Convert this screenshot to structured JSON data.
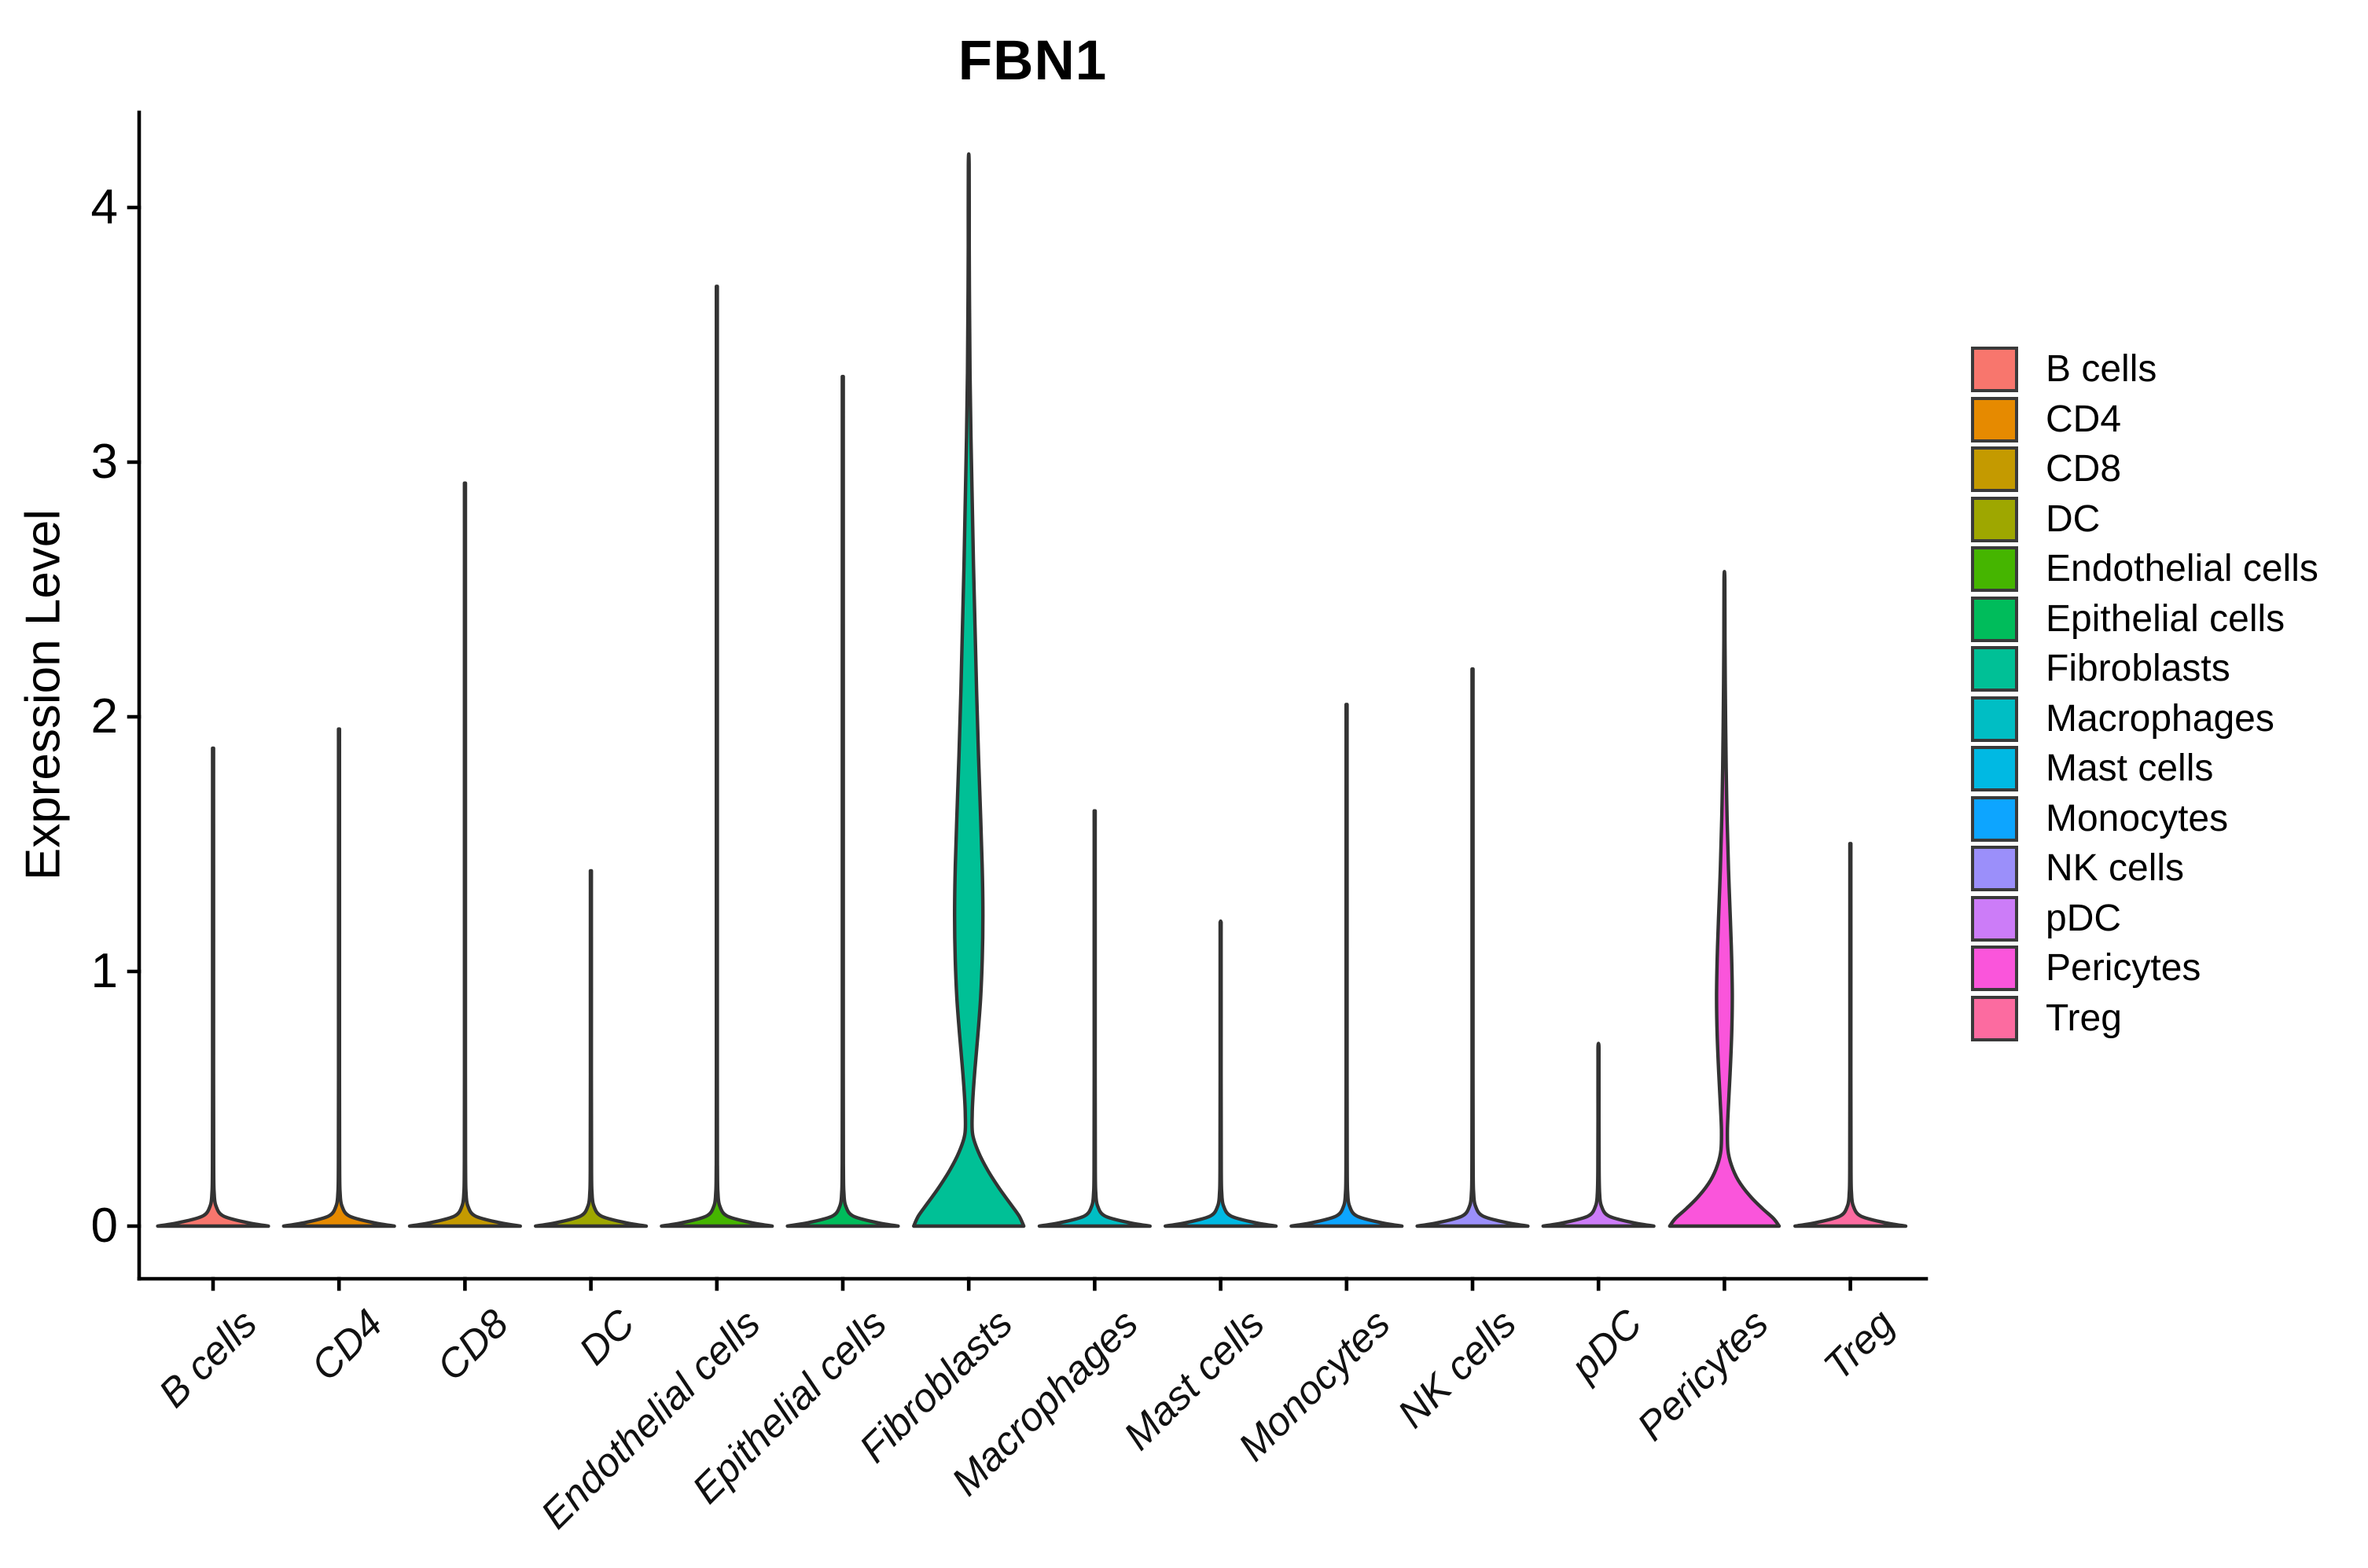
{
  "chart_data": {
    "type": "violin",
    "title": "FBN1",
    "ylabel": "Expression Level",
    "yticks": [
      0,
      1,
      2,
      3,
      4
    ],
    "ylim": [
      -0.2,
      4.4
    ],
    "grid": false,
    "legend_position": "right",
    "outline_color": "#333333",
    "axis_color": "#000000",
    "base_profile": [
      [
        0,
        0.88
      ],
      [
        0.015,
        0.52
      ],
      [
        0.04,
        0.16
      ],
      [
        0.08,
        0.045
      ],
      [
        0.13,
        0.018
      ],
      [
        0.22,
        0.01
      ]
    ],
    "categories": [
      {
        "label": "B cells",
        "color": "#F8766D",
        "peak": 1.83
      },
      {
        "label": "CD4",
        "color": "#E68A00",
        "peak": 1.9
      },
      {
        "label": "CD8",
        "color": "#C49A00",
        "peak": 2.8
      },
      {
        "label": "DC",
        "color": "#9EA700",
        "peak": 1.38
      },
      {
        "label": "Endothelial cells",
        "color": "#45B500",
        "peak": 3.52
      },
      {
        "label": "Epithelial cells",
        "color": "#00BC5B",
        "peak": 3.19
      },
      {
        "label": "Fibroblasts",
        "color": "#00C096",
        "peak": 4.17,
        "profile": [
          [
            0,
            0.875
          ],
          [
            0.04,
            0.8
          ],
          [
            0.09,
            0.655
          ],
          [
            0.15,
            0.48
          ],
          [
            0.22,
            0.3
          ],
          [
            0.29,
            0.155
          ],
          [
            0.36,
            0.062
          ],
          [
            0.44,
            0.055
          ],
          [
            0.52,
            0.07
          ],
          [
            0.62,
            0.1
          ],
          [
            0.75,
            0.145
          ],
          [
            0.9,
            0.19
          ],
          [
            1.05,
            0.215
          ],
          [
            1.22,
            0.225
          ],
          [
            1.4,
            0.215
          ],
          [
            1.6,
            0.19
          ],
          [
            1.85,
            0.155
          ],
          [
            2.1,
            0.125
          ],
          [
            2.35,
            0.1
          ],
          [
            2.6,
            0.075
          ],
          [
            2.85,
            0.055
          ],
          [
            3.1,
            0.035
          ],
          [
            3.35,
            0.02
          ],
          [
            3.6,
            0.012
          ],
          [
            3.85,
            0.008
          ],
          [
            4.17,
            0.006
          ]
        ]
      },
      {
        "label": "Macrophages",
        "color": "#00BEC4",
        "peak": 1.6
      },
      {
        "label": "Mast cells",
        "color": "#00B9E3",
        "peak": 1.19
      },
      {
        "label": "Monocytes",
        "color": "#0DA5FF",
        "peak": 1.99
      },
      {
        "label": "NK cells",
        "color": "#9B8FFA",
        "peak": 2.12
      },
      {
        "label": "pDC",
        "color": "#CC7CF8",
        "peak": 0.71
      },
      {
        "label": "Pericytes",
        "color": "#FA55DB",
        "peak": 2.54,
        "profile": [
          [
            0,
            0.87
          ],
          [
            0.03,
            0.78
          ],
          [
            0.07,
            0.6
          ],
          [
            0.12,
            0.4
          ],
          [
            0.18,
            0.22
          ],
          [
            0.24,
            0.11
          ],
          [
            0.3,
            0.055
          ],
          [
            0.38,
            0.048
          ],
          [
            0.48,
            0.065
          ],
          [
            0.6,
            0.09
          ],
          [
            0.75,
            0.115
          ],
          [
            0.9,
            0.125
          ],
          [
            1.05,
            0.115
          ],
          [
            1.2,
            0.095
          ],
          [
            1.4,
            0.065
          ],
          [
            1.6,
            0.042
          ],
          [
            1.8,
            0.028
          ],
          [
            2.05,
            0.016
          ],
          [
            2.3,
            0.009
          ],
          [
            2.54,
            0.006
          ]
        ]
      },
      {
        "label": "Treg",
        "color": "#FC6BA0",
        "peak": 1.48
      }
    ]
  }
}
